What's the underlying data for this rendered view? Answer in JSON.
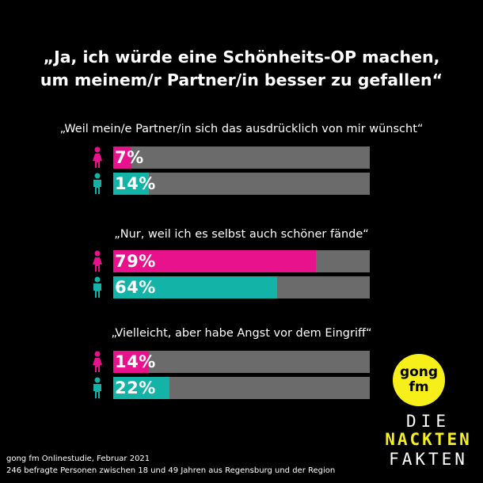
{
  "title": {
    "line1": "„Ja, ich würde eine Schönheits-OP machen,",
    "line2": "um meinem/r Partner/in besser zu gefallen“"
  },
  "colors": {
    "female": "#e8138c",
    "male": "#14b3a8",
    "track": "#6b6b6b",
    "brand_yellow": "#f6ef1a"
  },
  "chart_data": {
    "type": "bar",
    "orientation": "horizontal",
    "xlim": [
      0,
      100
    ],
    "unit": "%",
    "series": [
      {
        "name": "female-icon",
        "values": [
          7,
          79,
          14
        ]
      },
      {
        "name": "male-icon",
        "values": [
          14,
          64,
          22
        ]
      }
    ],
    "categories": [
      "„Weil mein/e Partner/in sich das ausdrücklich von mir wünscht“",
      "„Nur, weil ich es selbst auch schöner fände“",
      "„Vielleicht, aber habe Angst vor dem Eingriff“"
    ],
    "value_labels": [
      [
        "7%",
        "14%"
      ],
      [
        "79%",
        "64%"
      ],
      [
        "14%",
        "22%"
      ]
    ]
  },
  "footer": {
    "line1": "gong fm Onlinestudie, Februar 2021",
    "line2": "246 befragte Personen zwischen 18 und 49 Jahren aus Regensburg und der Region"
  },
  "logo": {
    "line1": "gong",
    "line2": "fm",
    "brand_line1": "DIE",
    "brand_line2": "NACKTEN",
    "brand_line3": "FAKTEN"
  }
}
